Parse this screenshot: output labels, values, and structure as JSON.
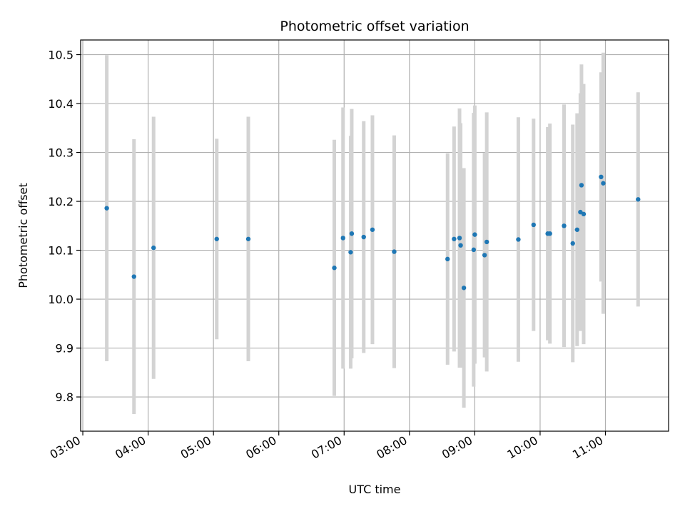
{
  "chart_data": {
    "type": "scatter",
    "title": "Photometric offset variation",
    "xlabel": "UTC time",
    "ylabel": "Photometric offset",
    "xlim": [
      "02:58",
      "11:58"
    ],
    "ylim": [
      9.73,
      10.53
    ],
    "grid": true,
    "x_ticks": [
      "03:00",
      "04:00",
      "05:00",
      "06:00",
      "07:00",
      "08:00",
      "09:00",
      "10:00",
      "11:00"
    ],
    "y_ticks": [
      "9.8",
      "9.9",
      "10.0",
      "10.1",
      "10.2",
      "10.3",
      "10.4",
      "10.5"
    ],
    "colors": {
      "point": "#1f77b4",
      "errorbar": "#d3d3d3",
      "grid": "#b0b0b0"
    },
    "series": [
      {
        "points": [
          {
            "x": "03:22",
            "y": 10.186,
            "yerr": 0.313
          },
          {
            "x": "03:47",
            "y": 10.046,
            "yerr": 0.281
          },
          {
            "x": "04:05",
            "y": 10.105,
            "yerr": 0.268
          },
          {
            "x": "05:03",
            "y": 10.123,
            "yerr": 0.205
          },
          {
            "x": "05:32",
            "y": 10.123,
            "yerr": 0.25
          },
          {
            "x": "06:51",
            "y": 10.064,
            "yerr": 0.262
          },
          {
            "x": "06:59",
            "y": 10.125,
            "yerr": 0.267
          },
          {
            "x": "07:06",
            "y": 10.096,
            "yerr": 0.238
          },
          {
            "x": "07:07",
            "y": 10.134,
            "yerr": 0.255
          },
          {
            "x": "07:18",
            "y": 10.127,
            "yerr": 0.237
          },
          {
            "x": "07:26",
            "y": 10.142,
            "yerr": 0.234
          },
          {
            "x": "07:46",
            "y": 10.097,
            "yerr": 0.238
          },
          {
            "x": "08:35",
            "y": 10.082,
            "yerr": 0.216
          },
          {
            "x": "08:41",
            "y": 10.123,
            "yerr": 0.23
          },
          {
            "x": "08:46",
            "y": 10.125,
            "yerr": 0.265
          },
          {
            "x": "08:47",
            "y": 10.11,
            "yerr": 0.25
          },
          {
            "x": "08:50",
            "y": 10.023,
            "yerr": 0.245
          },
          {
            "x": "08:59",
            "y": 10.101,
            "yerr": 0.28
          },
          {
            "x": "09:00",
            "y": 10.132,
            "yerr": 0.264
          },
          {
            "x": "09:09",
            "y": 10.09,
            "yerr": 0.209
          },
          {
            "x": "09:11",
            "y": 10.117,
            "yerr": 0.265
          },
          {
            "x": "09:40",
            "y": 10.122,
            "yerr": 0.25
          },
          {
            "x": "09:54",
            "y": 10.152,
            "yerr": 0.217
          },
          {
            "x": "10:07",
            "y": 10.134,
            "yerr": 0.218
          },
          {
            "x": "10:09",
            "y": 10.134,
            "yerr": 0.225
          },
          {
            "x": "10:22",
            "y": 10.15,
            "yerr": 0.248
          },
          {
            "x": "10:30",
            "y": 10.114,
            "yerr": 0.243
          },
          {
            "x": "10:34",
            "y": 10.142,
            "yerr": 0.238
          },
          {
            "x": "10:37",
            "y": 10.178,
            "yerr": 0.243
          },
          {
            "x": "10:38",
            "y": 10.233,
            "yerr": 0.247
          },
          {
            "x": "10:40",
            "y": 10.174,
            "yerr": 0.266
          },
          {
            "x": "10:56",
            "y": 10.25,
            "yerr": 0.214
          },
          {
            "x": "10:58",
            "y": 10.237,
            "yerr": 0.267
          },
          {
            "x": "11:30",
            "y": 10.204,
            "yerr": 0.219
          }
        ]
      }
    ]
  }
}
